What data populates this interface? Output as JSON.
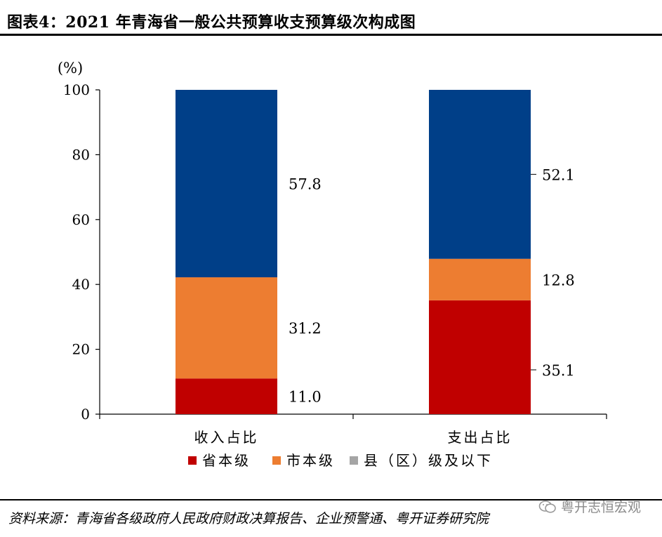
{
  "title": "图表4：2021 年青海省一般公共预算收支预算级次构成图",
  "source": "资料来源：青海省各级政府人民政府财政决算报告、企业预警通、粤开证券研究院",
  "watermark": "粤开志恒宏观",
  "chart_data": {
    "type": "bar",
    "stacked": true,
    "ylabel": "(%)",
    "ylim": [
      0,
      100
    ],
    "yticks": [
      0,
      20,
      40,
      60,
      80,
      100
    ],
    "categories": [
      "收入占比",
      "支出占比"
    ],
    "series": [
      {
        "name": "省本级",
        "color": "#c00000",
        "values": [
          11.0,
          35.1
        ],
        "labels": [
          "11.0",
          "35.1"
        ]
      },
      {
        "name": "市本级",
        "color": "#ed7d31",
        "values": [
          31.2,
          12.8
        ],
        "labels": [
          "31.2",
          "12.8"
        ]
      },
      {
        "name": "县（区）级及以下",
        "color": "#a5a5a5",
        "values": [
          57.8,
          52.1
        ],
        "labels": [
          "57.8",
          "52.1"
        ]
      }
    ],
    "legend": "bottom",
    "colors_note": "top segment rendered dark blue",
    "top_color": "#003f88"
  }
}
